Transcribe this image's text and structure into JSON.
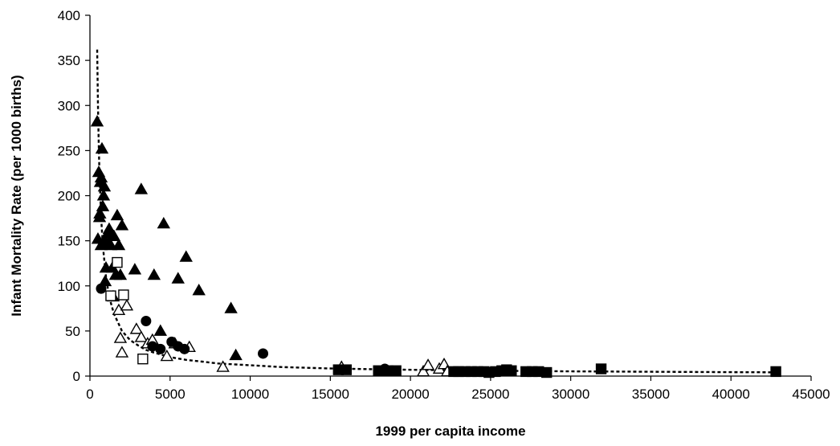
{
  "chart_data": {
    "type": "scatter",
    "title": "",
    "xlabel": "1999 per capita income",
    "ylabel": "Infant Mortality Rate (per 1000 births)",
    "xlim": [
      0,
      45000
    ],
    "ylim": [
      0,
      400
    ],
    "x_ticks": [
      0,
      5000,
      10000,
      15000,
      20000,
      25000,
      30000,
      35000,
      40000,
      45000
    ],
    "y_ticks": [
      0,
      50,
      100,
      150,
      200,
      250,
      300,
      350,
      400
    ],
    "grid": false,
    "legend": "none",
    "series": [
      {
        "marker": "filled-triangle",
        "color": "#000000",
        "points": [
          [
            450,
            282
          ],
          [
            500,
            152
          ],
          [
            550,
            226
          ],
          [
            600,
            176
          ],
          [
            620,
            180
          ],
          [
            650,
            215
          ],
          [
            700,
            220
          ],
          [
            700,
            145
          ],
          [
            750,
            252
          ],
          [
            800,
            188
          ],
          [
            850,
            200
          ],
          [
            900,
            210
          ],
          [
            900,
            150
          ],
          [
            950,
            105
          ],
          [
            1000,
            120
          ],
          [
            1100,
            158
          ],
          [
            1150,
            148
          ],
          [
            1200,
            163
          ],
          [
            1300,
            145
          ],
          [
            1400,
            120
          ],
          [
            1450,
            88
          ],
          [
            1500,
            155
          ],
          [
            1600,
            112
          ],
          [
            1700,
            178
          ],
          [
            1800,
            145
          ],
          [
            1900,
            112
          ],
          [
            2000,
            167
          ],
          [
            2800,
            118
          ],
          [
            3200,
            207
          ],
          [
            4000,
            112
          ],
          [
            4400,
            50
          ],
          [
            4600,
            169
          ],
          [
            5500,
            108
          ],
          [
            6000,
            132
          ],
          [
            6800,
            95
          ],
          [
            8800,
            75
          ],
          [
            9100,
            23
          ]
        ]
      },
      {
        "marker": "open-triangle",
        "color": "#000000",
        "points": [
          [
            1800,
            73
          ],
          [
            1900,
            42
          ],
          [
            2000,
            26
          ],
          [
            2300,
            78
          ],
          [
            2900,
            52
          ],
          [
            3200,
            43
          ],
          [
            3600,
            36
          ],
          [
            3900,
            40
          ],
          [
            4800,
            22
          ],
          [
            5300,
            36
          ],
          [
            6200,
            32
          ],
          [
            8300,
            10
          ],
          [
            15700,
            10
          ],
          [
            20800,
            5
          ],
          [
            21100,
            12
          ],
          [
            21800,
            8
          ],
          [
            22100,
            13
          ],
          [
            22300,
            5
          ]
        ]
      },
      {
        "marker": "filled-circle",
        "color": "#000000",
        "points": [
          [
            700,
            97
          ],
          [
            3500,
            61
          ],
          [
            3900,
            33
          ],
          [
            4400,
            30
          ],
          [
            5100,
            38
          ],
          [
            5500,
            33
          ],
          [
            5900,
            30
          ],
          [
            10800,
            25
          ],
          [
            18400,
            8
          ]
        ]
      },
      {
        "marker": "open-square",
        "color": "#000000",
        "points": [
          [
            1300,
            89
          ],
          [
            1700,
            126
          ],
          [
            2100,
            90
          ],
          [
            3300,
            19
          ]
        ]
      },
      {
        "marker": "filled-square",
        "color": "#000000",
        "points": [
          [
            15500,
            7
          ],
          [
            16000,
            7
          ],
          [
            18000,
            6
          ],
          [
            18600,
            6
          ],
          [
            19100,
            6
          ],
          [
            22700,
            5
          ],
          [
            23000,
            5
          ],
          [
            23400,
            5
          ],
          [
            23800,
            5
          ],
          [
            24200,
            5
          ],
          [
            24600,
            5
          ],
          [
            24900,
            4
          ],
          [
            25300,
            5
          ],
          [
            25700,
            6
          ],
          [
            26000,
            7
          ],
          [
            26300,
            6
          ],
          [
            27200,
            5
          ],
          [
            27600,
            5
          ],
          [
            28000,
            5
          ],
          [
            28500,
            4
          ],
          [
            31900,
            8
          ],
          [
            42800,
            5
          ]
        ]
      }
    ],
    "trendline": {
      "style": "dashed",
      "color": "#000000",
      "x": [
        450,
        500,
        550,
        600,
        700,
        800,
        1000,
        1200,
        1500,
        2000,
        2500,
        3000,
        3500,
        4000,
        5000,
        6000,
        7000,
        8000,
        10000,
        12000,
        15000,
        18000,
        21000,
        25000,
        30000,
        35000,
        40000,
        42800
      ],
      "y": [
        362,
        300,
        255,
        220,
        175,
        145,
        110,
        88,
        69,
        50,
        40,
        34,
        29,
        26,
        21,
        18,
        16,
        14,
        12,
        10,
        8.5,
        7.5,
        6.8,
        6.0,
        5.3,
        4.8,
        4.4,
        4.2
      ]
    }
  }
}
